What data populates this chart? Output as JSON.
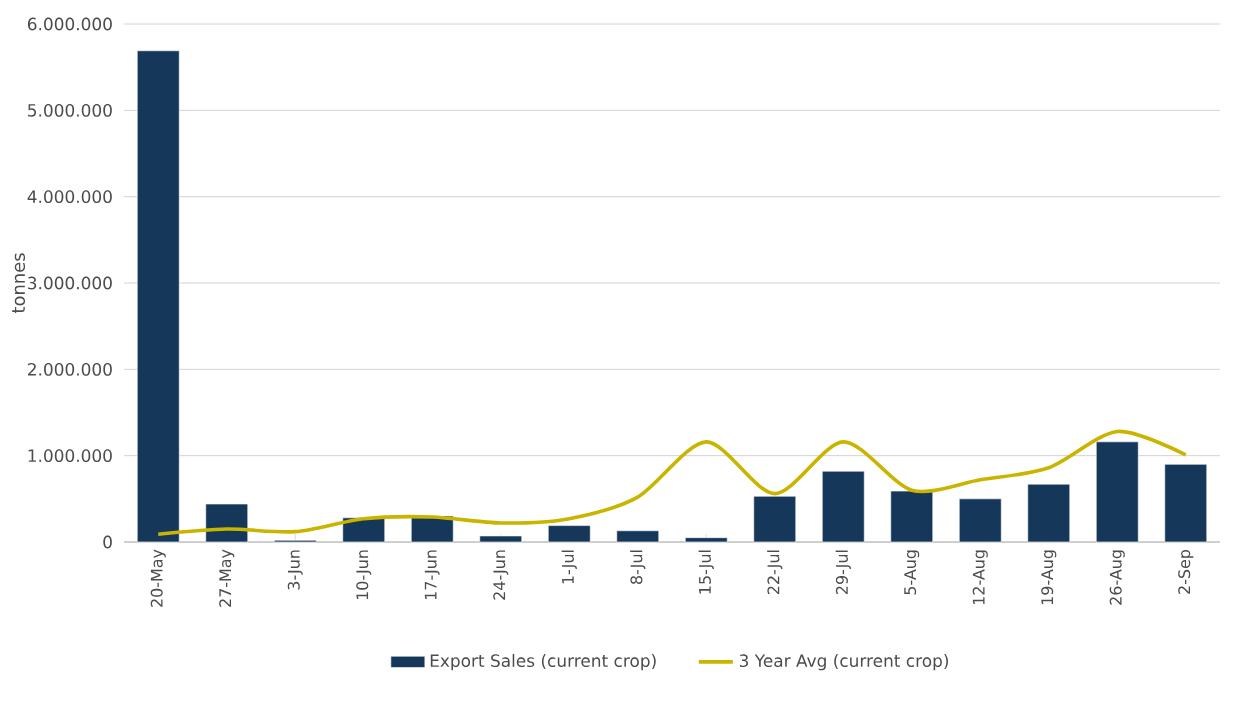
{
  "chart_data": {
    "type": "bar",
    "ylabel": "tonnes",
    "categories": [
      "20-May",
      "27-May",
      "3-Jun",
      "10-Jun",
      "17-Jun",
      "24-Jun",
      "1-Jul",
      "8-Jul",
      "15-Jul",
      "22-Jul",
      "29-Jul",
      "5-Aug",
      "12-Aug",
      "19-Aug",
      "26-Aug",
      "2-Sep"
    ],
    "series": [
      {
        "name": "Export Sales (current crop)",
        "color": "#14375a",
        "values": [
          5690000,
          440000,
          20000,
          280000,
          300000,
          70000,
          190000,
          130000,
          50000,
          530000,
          820000,
          590000,
          500000,
          670000,
          1160000,
          900000
        ]
      },
      {
        "name": "3 Year Avg (current crop)",
        "type": "line",
        "color": "#c9b500",
        "values": [
          90000,
          150000,
          120000,
          270000,
          290000,
          220000,
          270000,
          520000,
          1160000,
          560000,
          1160000,
          600000,
          720000,
          860000,
          1280000,
          1010000
        ]
      }
    ],
    "ylim": [
      0,
      6000000
    ],
    "yticks": [
      {
        "value": 0,
        "label": "0"
      },
      {
        "value": 1000000,
        "label": "1.000.000"
      },
      {
        "value": 2000000,
        "label": "2.000.000"
      },
      {
        "value": 3000000,
        "label": "3.000.000"
      },
      {
        "value": 4000000,
        "label": "4.000.000"
      },
      {
        "value": 5000000,
        "label": "5.000.000"
      },
      {
        "value": 6000000,
        "label": "6.000.000"
      }
    ],
    "grid": "y",
    "legend": "bottom",
    "marker": "none",
    "line_style": "solid"
  }
}
